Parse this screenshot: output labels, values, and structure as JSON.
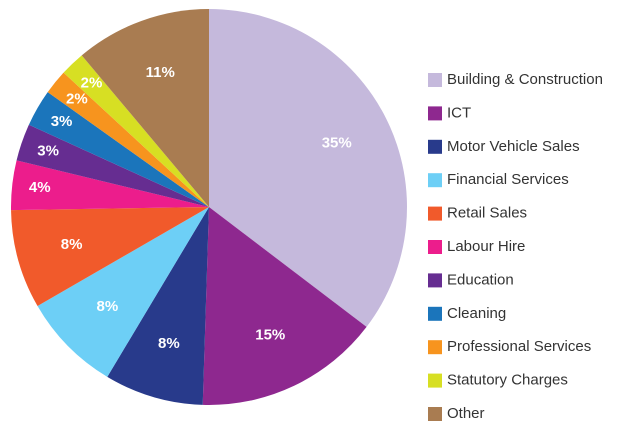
{
  "chart_data": {
    "type": "pie",
    "categories": [
      "Building & Construction",
      "ICT",
      "Motor Vehicle Sales",
      "Financial Services",
      "Retail Sales",
      "Labour Hire",
      "Education",
      "Cleaning",
      "Professional Services",
      "Statutory Charges",
      "Other"
    ],
    "values": [
      35,
      15,
      8,
      8,
      8,
      4,
      3,
      3,
      2,
      2,
      11
    ],
    "value_labels": [
      "35%",
      "15%",
      "8%",
      "8%",
      "8%",
      "4%",
      "3%",
      "3%",
      "2%",
      "2%",
      "11%"
    ],
    "colors": [
      "#c5b9dc",
      "#8e288f",
      "#283a8b",
      "#6dcff6",
      "#f15a2b",
      "#ec1d8c",
      "#662d91",
      "#1b75bb",
      "#f7941e",
      "#d7df23",
      "#a97c51"
    ],
    "legend": "right"
  }
}
